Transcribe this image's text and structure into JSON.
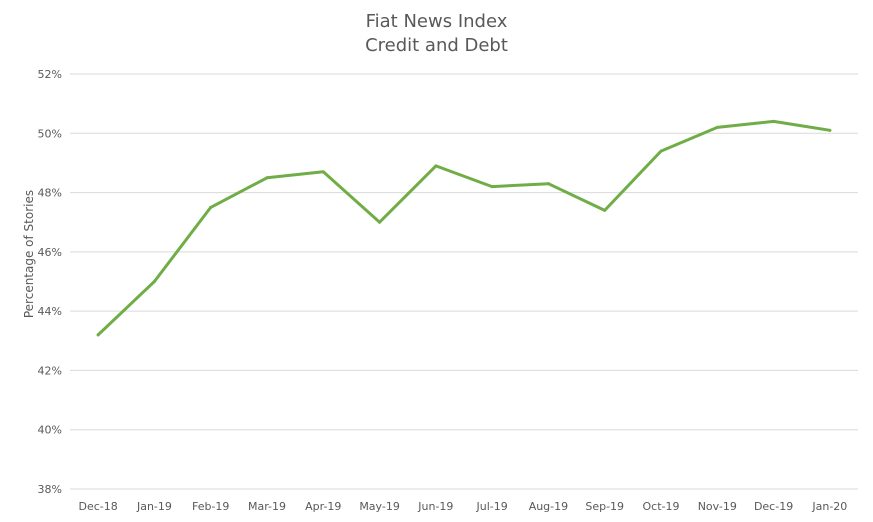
{
  "chart_data": {
    "type": "line",
    "title": "Fiat News Index",
    "subtitle": "Credit and Debt",
    "xlabel": "",
    "ylabel": "Percentage of Stories",
    "ylim": [
      38,
      52
    ],
    "y_tick_step": 2,
    "y_tick_suffix": "%",
    "grid": true,
    "legend": "none",
    "categories": [
      "Dec-18",
      "Jan-19",
      "Feb-19",
      "Mar-19",
      "Apr-19",
      "May-19",
      "Jun-19",
      "Jul-19",
      "Aug-19",
      "Sep-19",
      "Oct-19",
      "Nov-19",
      "Dec-19",
      "Jan-20"
    ],
    "series": [
      {
        "color": "#70ad47",
        "values": [
          43.2,
          45.0,
          47.5,
          48.5,
          48.7,
          47.0,
          48.9,
          48.2,
          48.3,
          47.4,
          49.4,
          50.2,
          50.4,
          50.1
        ]
      }
    ]
  }
}
